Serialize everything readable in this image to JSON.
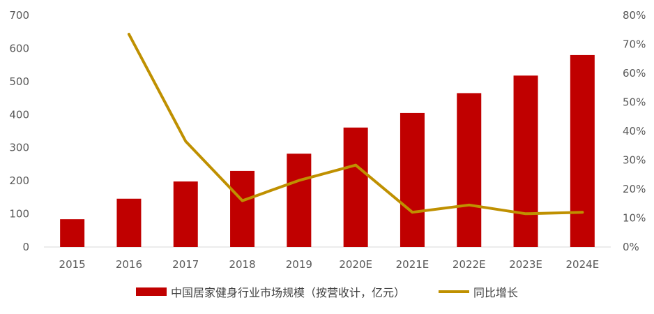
{
  "chart_data": {
    "type": "bar",
    "categories": [
      "2015",
      "2016",
      "2017",
      "2018",
      "2019",
      "2020E",
      "2021E",
      "2022E",
      "2023E",
      "2024E"
    ],
    "series": [
      {
        "name": "中国居家健身行业市场规模（按营收计，亿元）",
        "type": "bar",
        "axis": "left",
        "color": "#c00000",
        "values": [
          84,
          146,
          198,
          230,
          282,
          361,
          405,
          465,
          518,
          580
        ]
      },
      {
        "name": "同比增长",
        "type": "line",
        "axis": "right",
        "color": "#bf9000",
        "values": [
          null,
          0.735,
          0.365,
          0.16,
          0.23,
          0.283,
          0.12,
          0.145,
          0.115,
          0.12
        ]
      }
    ],
    "y_left": {
      "min": 0,
      "max": 700,
      "ticks": [
        "0",
        "100",
        "200",
        "300",
        "400",
        "500",
        "600",
        "700"
      ]
    },
    "y_right": {
      "min": 0,
      "max": 0.8,
      "ticks": [
        "0%",
        "10%",
        "20%",
        "30%",
        "40%",
        "50%",
        "60%",
        "70%",
        "80%"
      ]
    },
    "grid": false,
    "legend_position": "bottom"
  }
}
